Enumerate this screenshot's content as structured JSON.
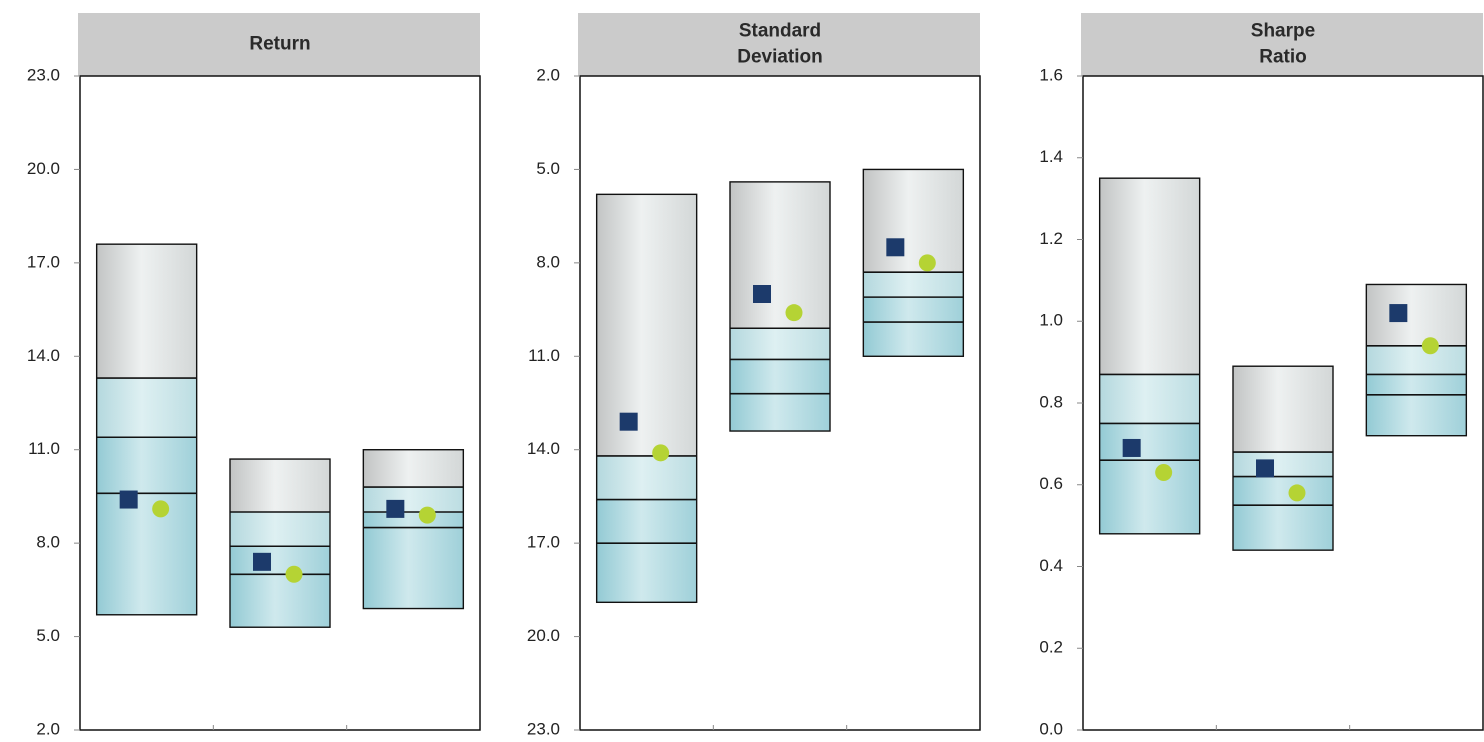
{
  "chart_data": [
    {
      "type": "floating-bar",
      "title": [
        "Return"
      ],
      "ylim": [
        2,
        23
      ],
      "yticks": [
        {
          "value": 2,
          "label": "2.0"
        },
        {
          "value": 5,
          "label": "5.0"
        },
        {
          "value": 8,
          "label": "8.0"
        },
        {
          "value": 11,
          "label": "11.0"
        },
        {
          "value": 14,
          "label": "14.0"
        },
        {
          "value": 17,
          "label": "17.0"
        },
        {
          "value": 20,
          "label": "20.0"
        },
        {
          "value": 23,
          "label": "23.0"
        }
      ],
      "bars": [
        [
          5.7,
          9.6,
          11.4,
          13.3,
          17.6
        ],
        [
          5.3,
          7.0,
          7.9,
          9.0,
          10.7
        ],
        [
          5.9,
          8.5,
          9.0,
          9.8,
          11.0
        ]
      ],
      "series": [
        {
          "marker": "square",
          "color": "#1c3a6b",
          "values": [
            9.4,
            7.4,
            9.1
          ]
        },
        {
          "marker": "circle",
          "color": "#b5d334",
          "values": [
            9.1,
            7.0,
            8.9
          ]
        }
      ]
    },
    {
      "type": "floating-bar",
      "title": [
        "Standard",
        "Deviation"
      ],
      "ylim": [
        23,
        2
      ],
      "yticks": [
        {
          "value": 2,
          "label": "2.0"
        },
        {
          "value": 5,
          "label": "5.0"
        },
        {
          "value": 8,
          "label": "8.0"
        },
        {
          "value": 11,
          "label": "11.0"
        },
        {
          "value": 14,
          "label": "14.0"
        },
        {
          "value": 17,
          "label": "17.0"
        },
        {
          "value": 20,
          "label": "20.0"
        },
        {
          "value": 23,
          "label": "23.0"
        }
      ],
      "bars": [
        [
          5.8,
          14.2,
          15.6,
          17.0,
          18.9
        ],
        [
          5.4,
          10.1,
          11.1,
          12.2,
          13.4
        ],
        [
          5.0,
          8.3,
          9.1,
          9.9,
          11.0
        ]
      ],
      "series": [
        {
          "marker": "square",
          "color": "#1c3a6b",
          "values": [
            13.1,
            9.0,
            7.5
          ]
        },
        {
          "marker": "circle",
          "color": "#b5d334",
          "values": [
            14.1,
            9.6,
            8.0
          ]
        }
      ]
    },
    {
      "type": "floating-bar",
      "title": [
        "Sharpe",
        "Ratio"
      ],
      "ylim": [
        0,
        1.6
      ],
      "yticks": [
        {
          "value": 0,
          "label": "0.0"
        },
        0.2,
        0.4,
        0.6,
        0.8,
        {
          "value": 1,
          "label": "1.0"
        },
        1.2,
        1.4,
        1.6
      ],
      "bars": [
        [
          0.48,
          0.66,
          0.75,
          0.87,
          1.35
        ],
        [
          0.44,
          0.55,
          0.62,
          0.68,
          0.89
        ],
        [
          0.72,
          0.82,
          0.87,
          0.94,
          1.09
        ]
      ],
      "series": [
        {
          "marker": "square",
          "color": "#1c3a6b",
          "values": [
            0.69,
            0.64,
            1.02
          ]
        },
        {
          "marker": "circle",
          "color": "#b5d334",
          "values": [
            0.63,
            0.58,
            0.94
          ]
        }
      ]
    }
  ]
}
